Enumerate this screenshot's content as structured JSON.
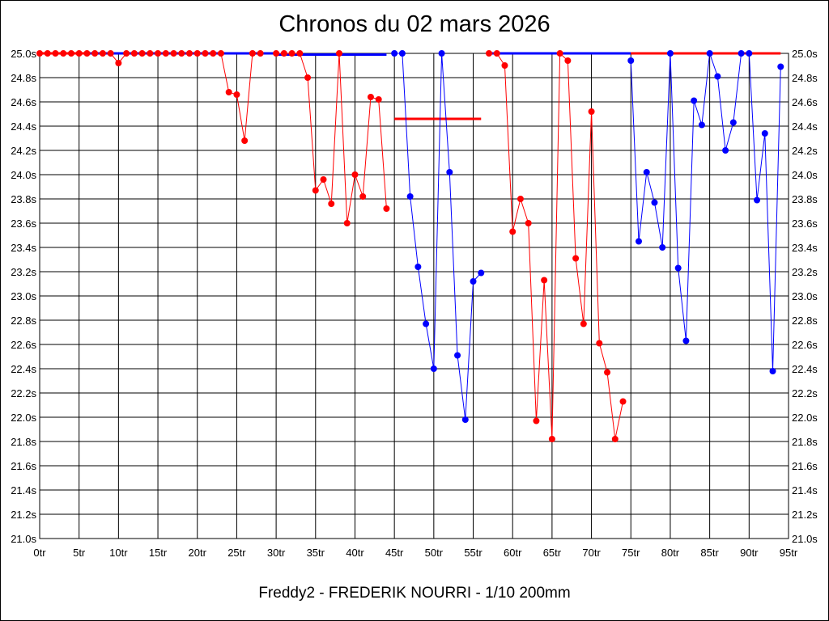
{
  "chart_data": {
    "type": "line",
    "title": "Chronos du 02 mars 2026",
    "subtitle": "Freddy2 - FREDERIK NOURRI - 1/10 200mm",
    "ylim": [
      21.0,
      25.0
    ],
    "xlim": [
      0,
      95
    ],
    "grid": true,
    "x_ticks": [
      "0tr",
      "5tr",
      "10tr",
      "15tr",
      "20tr",
      "25tr",
      "30tr",
      "35tr",
      "40tr",
      "45tr",
      "50tr",
      "55tr",
      "60tr",
      "65tr",
      "70tr",
      "75tr",
      "80tr",
      "85tr",
      "90tr",
      "95tr"
    ],
    "y_ticks": [
      "25.0s",
      "24.8s",
      "24.6s",
      "24.4s",
      "24.2s",
      "24.0s",
      "23.8s",
      "23.6s",
      "23.4s",
      "23.2s",
      "23.0s",
      "22.8s",
      "22.6s",
      "22.4s",
      "22.2s",
      "22.0s",
      "21.8s",
      "21.6s",
      "21.4s",
      "21.2s",
      "21.0s"
    ],
    "segments": [
      {
        "color": "#ff0000",
        "points": [
          [
            0,
            25.0
          ],
          [
            1,
            25.0
          ],
          [
            2,
            25.0
          ],
          [
            3,
            25.0
          ],
          [
            4,
            25.0
          ],
          [
            5,
            25.0
          ]
        ]
      },
      {
        "color": "#ff0000",
        "points": [
          [
            6,
            25.0
          ],
          [
            7,
            25.0
          ],
          [
            8,
            25.0
          ],
          [
            9,
            25.0
          ],
          [
            10,
            24.92
          ],
          [
            11,
            25.0
          ],
          [
            12,
            25.0
          ],
          [
            13,
            25.0
          ],
          [
            14,
            25.0
          ],
          [
            15,
            25.0
          ],
          [
            16,
            25.0
          ],
          [
            17,
            25.0
          ],
          [
            18,
            25.0
          ],
          [
            19,
            25.0
          ],
          [
            20,
            25.0
          ],
          [
            21,
            25.0
          ],
          [
            22,
            25.0
          ],
          [
            23,
            25.0
          ],
          [
            24,
            24.68
          ],
          [
            25,
            24.66
          ],
          [
            26,
            24.28
          ],
          [
            27,
            25.0
          ],
          [
            28,
            25.0
          ]
        ]
      },
      {
        "color": "#ff0000",
        "points": [
          [
            30,
            25.0
          ],
          [
            31,
            25.0
          ],
          [
            32,
            25.0
          ],
          [
            33,
            25.0
          ],
          [
            34,
            24.8
          ],
          [
            35,
            23.87
          ],
          [
            36,
            23.96
          ],
          [
            37,
            23.76
          ],
          [
            38,
            25.0
          ],
          [
            39,
            23.6
          ],
          [
            40,
            24.0
          ],
          [
            41,
            23.82
          ],
          [
            42,
            24.64
          ],
          [
            43,
            24.62
          ],
          [
            44,
            23.72
          ]
        ]
      },
      {
        "color": "#0000ff",
        "points": [
          [
            45,
            25.0
          ],
          [
            46,
            25.0
          ],
          [
            47,
            23.82
          ],
          [
            48,
            23.24
          ],
          [
            49,
            22.77
          ],
          [
            50,
            22.4
          ],
          [
            51,
            25.0
          ],
          [
            52,
            24.02
          ],
          [
            53,
            22.51
          ],
          [
            54,
            21.98
          ],
          [
            55,
            23.12
          ],
          [
            56,
            23.19
          ]
        ]
      },
      {
        "color": "#ff0000",
        "points": [
          [
            57,
            25.0
          ],
          [
            58,
            25.0
          ],
          [
            59,
            24.9
          ],
          [
            60,
            23.53
          ],
          [
            61,
            23.8
          ],
          [
            62,
            23.6
          ],
          [
            63,
            21.97
          ],
          [
            64,
            23.13
          ],
          [
            65,
            21.82
          ],
          [
            66,
            25.0
          ],
          [
            67,
            24.94
          ],
          [
            68,
            23.31
          ],
          [
            69,
            22.77
          ],
          [
            70,
            24.52
          ],
          [
            71,
            22.61
          ],
          [
            72,
            22.37
          ],
          [
            73,
            21.82
          ],
          [
            74,
            22.13
          ]
        ]
      },
      {
        "color": "#0000ff",
        "points": [
          [
            75,
            24.94
          ],
          [
            76,
            23.45
          ],
          [
            77,
            24.02
          ],
          [
            78,
            23.77
          ],
          [
            79,
            23.4
          ],
          [
            80,
            25.0
          ],
          [
            81,
            23.23
          ],
          [
            82,
            22.63
          ],
          [
            83,
            24.61
          ],
          [
            84,
            24.41
          ],
          [
            85,
            25.0
          ],
          [
            86,
            24.81
          ],
          [
            87,
            24.2
          ],
          [
            88,
            24.43
          ],
          [
            89,
            25.0
          ],
          [
            90,
            25.0
          ],
          [
            91,
            23.79
          ],
          [
            92,
            24.34
          ],
          [
            93,
            22.38
          ],
          [
            94,
            24.89
          ]
        ]
      }
    ],
    "references": [
      {
        "color": "#ff0000",
        "x": [
          0,
          6
        ],
        "y": 25.0
      },
      {
        "color": "#0000ff",
        "x": [
          6,
          30
        ],
        "y": 25.0
      },
      {
        "color": "#0000ff",
        "x": [
          30,
          44
        ],
        "y": 24.99
      },
      {
        "color": "#ff0000",
        "x": [
          45,
          56
        ],
        "y": 24.46
      },
      {
        "color": "#0000ff",
        "x": [
          57,
          75
        ],
        "y": 25.0
      },
      {
        "color": "#ff0000",
        "x": [
          75,
          94
        ],
        "y": 25.0
      }
    ]
  }
}
